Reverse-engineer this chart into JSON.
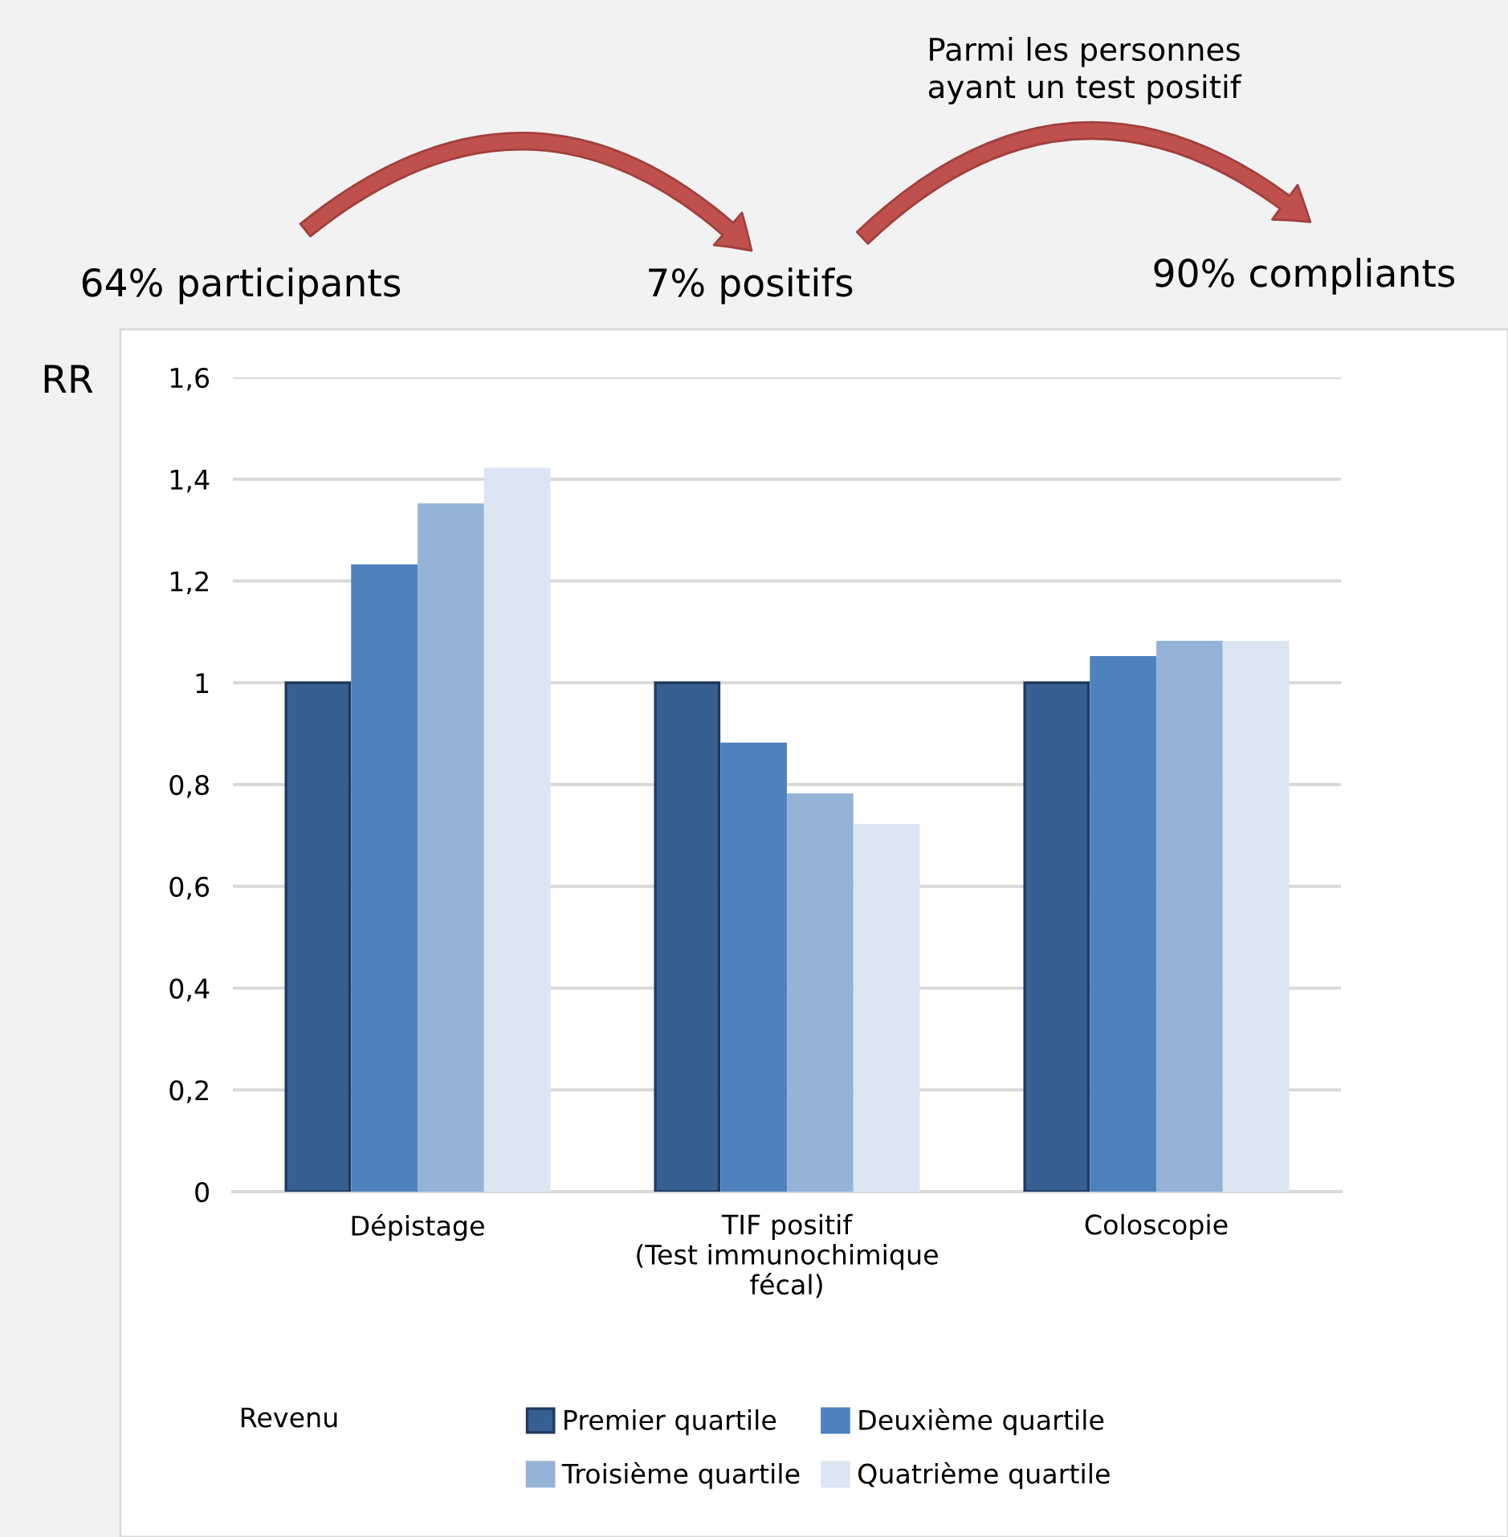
{
  "chart_data": {
    "type": "bar",
    "categories": [
      "Dépistage",
      "TIF positif\n(Test immunochimique\nfécal)",
      "Coloscopie"
    ],
    "series": [
      {
        "name": "Premier quartile",
        "color": "#366092",
        "values": [
          1,
          1,
          1
        ]
      },
      {
        "name": "Deuxième quartile",
        "color": "#4f81bd",
        "values": [
          1.23,
          0.88,
          1.05
        ]
      },
      {
        "name": "Troisième quartile",
        "color": "#95b3d7",
        "values": [
          1.35,
          0.78,
          1.08
        ]
      },
      {
        "name": "Quatrième quartile",
        "color": "#dce6f2",
        "values": [
          1.42,
          0.72,
          1.08
        ]
      }
    ],
    "ylabel": "RR",
    "legend_title": "Revenu",
    "ylim": [
      0,
      1.6
    ],
    "yticks": [
      {
        "value": 0,
        "label": "0"
      },
      {
        "value": 0.2,
        "label": "0,2"
      },
      {
        "value": 0.4,
        "label": "0,4"
      },
      {
        "value": 0.6,
        "label": "0,6"
      },
      {
        "value": 0.8,
        "label": "0,8"
      },
      {
        "value": 1,
        "label": "1"
      },
      {
        "value": 1.2,
        "label": "1,2"
      },
      {
        "value": 1.4,
        "label": "1,4"
      },
      {
        "value": 1.6,
        "label": "1,6"
      }
    ],
    "grid": "y",
    "legend": "bottom",
    "annotations": [
      "64% participants",
      "7% positifs",
      "90% compliants",
      "Parmi les personnes\nayant un test positif"
    ]
  }
}
